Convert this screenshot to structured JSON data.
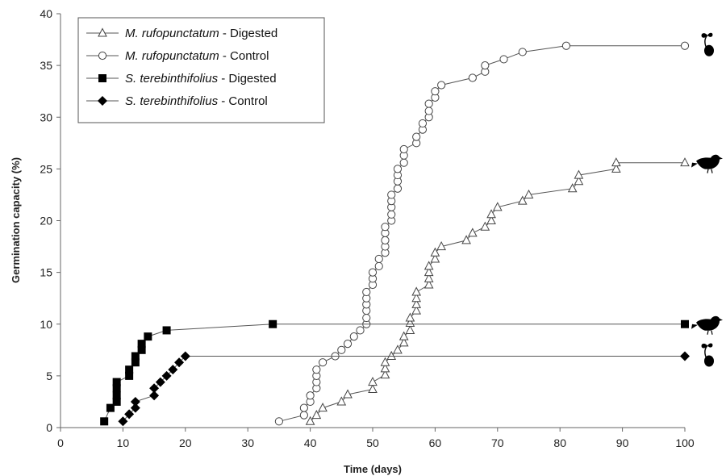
{
  "chart_data": {
    "type": "line",
    "xlabel": "Time (days)",
    "ylabel": "Germination capacity  (%)",
    "xlim": [
      0,
      100
    ],
    "ylim": [
      0,
      40
    ],
    "xticks": [
      0,
      10,
      20,
      30,
      40,
      50,
      60,
      70,
      80,
      90,
      100
    ],
    "yticks": [
      0,
      5,
      10,
      15,
      20,
      25,
      30,
      35,
      40
    ],
    "grid": false,
    "legend_position": "top-left",
    "series": [
      {
        "name_species": "M. rufopunctatum",
        "name_treatment": " - Digested",
        "marker": "triangle-open",
        "end_icon": "bird-icon",
        "points": [
          [
            40,
            0.6
          ],
          [
            41,
            1.2
          ],
          [
            42,
            1.9
          ],
          [
            45,
            2.5
          ],
          [
            46,
            3.2
          ],
          [
            50,
            3.7
          ],
          [
            50,
            4.4
          ],
          [
            52,
            5.1
          ],
          [
            52,
            5.7
          ],
          [
            52,
            6.3
          ],
          [
            53,
            6.9
          ],
          [
            54,
            7.5
          ],
          [
            55,
            8.2
          ],
          [
            55,
            8.8
          ],
          [
            56,
            9.4
          ],
          [
            56,
            10.1
          ],
          [
            56,
            10.6
          ],
          [
            57,
            11.3
          ],
          [
            57,
            11.9
          ],
          [
            57,
            12.5
          ],
          [
            57,
            13.1
          ],
          [
            59,
            13.8
          ],
          [
            59,
            14.4
          ],
          [
            59,
            15.0
          ],
          [
            59,
            15.6
          ],
          [
            60,
            16.3
          ],
          [
            60,
            16.9
          ],
          [
            61,
            17.5
          ],
          [
            65,
            18.1
          ],
          [
            66,
            18.8
          ],
          [
            68,
            19.4
          ],
          [
            69,
            20.0
          ],
          [
            69,
            20.6
          ],
          [
            70,
            21.3
          ],
          [
            74,
            21.9
          ],
          [
            75,
            22.5
          ],
          [
            82,
            23.1
          ],
          [
            83,
            23.8
          ],
          [
            83,
            24.4
          ],
          [
            89,
            25.0
          ],
          [
            89,
            25.6
          ],
          [
            100,
            25.6
          ]
        ]
      },
      {
        "name_species": "M. rufopunctatum",
        "name_treatment": " - Control",
        "marker": "circle-open",
        "end_icon": "seedling-icon",
        "points": [
          [
            35,
            0.6
          ],
          [
            39,
            1.2
          ],
          [
            39,
            1.9
          ],
          [
            40,
            2.5
          ],
          [
            40,
            3.1
          ],
          [
            41,
            3.8
          ],
          [
            41,
            4.4
          ],
          [
            41,
            5.0
          ],
          [
            41,
            5.6
          ],
          [
            42,
            6.3
          ],
          [
            44,
            6.9
          ],
          [
            45,
            7.5
          ],
          [
            46,
            8.1
          ],
          [
            47,
            8.8
          ],
          [
            48,
            9.4
          ],
          [
            49,
            10.0
          ],
          [
            49,
            10.6
          ],
          [
            49,
            11.3
          ],
          [
            49,
            11.9
          ],
          [
            49,
            12.5
          ],
          [
            49,
            13.1
          ],
          [
            50,
            13.8
          ],
          [
            50,
            14.4
          ],
          [
            50,
            15.0
          ],
          [
            51,
            15.6
          ],
          [
            51,
            16.3
          ],
          [
            52,
            16.9
          ],
          [
            52,
            17.5
          ],
          [
            52,
            18.1
          ],
          [
            52,
            18.8
          ],
          [
            52,
            19.4
          ],
          [
            53,
            20.0
          ],
          [
            53,
            20.6
          ],
          [
            53,
            21.3
          ],
          [
            53,
            21.9
          ],
          [
            53,
            22.5
          ],
          [
            54,
            23.1
          ],
          [
            54,
            23.8
          ],
          [
            54,
            24.4
          ],
          [
            54,
            25.0
          ],
          [
            55,
            25.6
          ],
          [
            55,
            26.3
          ],
          [
            55,
            26.9
          ],
          [
            57,
            27.5
          ],
          [
            57,
            28.1
          ],
          [
            58,
            28.8
          ],
          [
            58,
            29.4
          ],
          [
            59,
            30.0
          ],
          [
            59,
            30.6
          ],
          [
            59,
            31.3
          ],
          [
            60,
            31.9
          ],
          [
            60,
            32.5
          ],
          [
            61,
            33.1
          ],
          [
            66,
            33.8
          ],
          [
            68,
            34.4
          ],
          [
            68,
            35.0
          ],
          [
            71,
            35.6
          ],
          [
            74,
            36.3
          ],
          [
            81,
            36.9
          ],
          [
            100,
            36.9
          ]
        ]
      },
      {
        "name_species": "S. terebinthifolius",
        "name_treatment": " - Digested",
        "marker": "square-filled",
        "end_icon": "bird-icon",
        "points": [
          [
            7,
            0.6
          ],
          [
            8,
            1.9
          ],
          [
            9,
            2.5
          ],
          [
            9,
            3.1
          ],
          [
            9,
            3.8
          ],
          [
            9,
            4.4
          ],
          [
            11,
            5.0
          ],
          [
            11,
            5.6
          ],
          [
            12,
            6.3
          ],
          [
            12,
            6.9
          ],
          [
            13,
            7.5
          ],
          [
            13,
            8.1
          ],
          [
            14,
            8.8
          ],
          [
            17,
            9.4
          ],
          [
            34,
            10.0
          ],
          [
            100,
            10.0
          ]
        ]
      },
      {
        "name_species": "S. terebinthifolius",
        "name_treatment": " - Control",
        "marker": "diamond-filled",
        "end_icon": "seedling-icon",
        "points": [
          [
            10,
            0.6
          ],
          [
            11,
            1.3
          ],
          [
            12,
            1.9
          ],
          [
            12,
            2.5
          ],
          [
            15,
            3.1
          ],
          [
            15,
            3.8
          ],
          [
            16,
            4.4
          ],
          [
            17,
            5.0
          ],
          [
            18,
            5.6
          ],
          [
            19,
            6.3
          ],
          [
            20,
            6.9
          ],
          [
            100,
            6.9
          ]
        ]
      }
    ]
  }
}
